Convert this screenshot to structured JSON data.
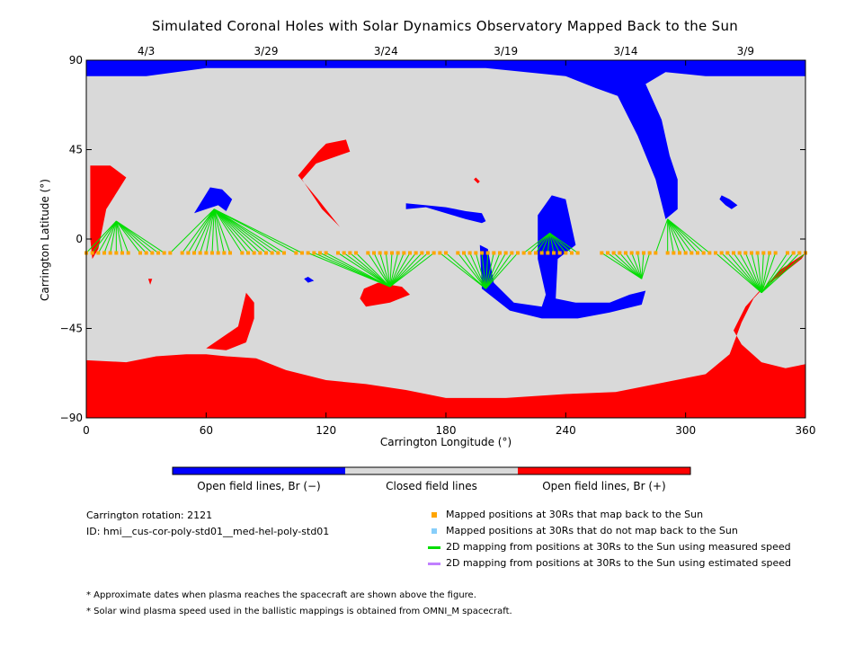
{
  "title": "Simulated Coronal Holes with Solar Dynamics Observatory Mapped Back to the Sun",
  "colors": {
    "open_negative": "#0000ff",
    "closed": "#d9d9d9",
    "open_positive": "#ff0000",
    "mapped_back": "#ffa500",
    "not_mapped": "#87cefa",
    "measured_speed": "#00dd00",
    "estimated_speed": "#c080ff"
  },
  "chart_data": {
    "type": "map",
    "xlabel": "Carrington Longitude (°)",
    "ylabel": "Carrington Latitude (°)",
    "xlim": [
      0,
      360
    ],
    "ylim": [
      -90,
      90
    ],
    "x_ticks": [
      "0",
      "60",
      "120",
      "180",
      "240",
      "300",
      "360"
    ],
    "y_ticks": [
      "90",
      "45",
      "0",
      "−45",
      "−90"
    ],
    "top_date_labels": [
      {
        "label": "4/3",
        "lon": 30
      },
      {
        "label": "3/29",
        "lon": 90
      },
      {
        "label": "3/24",
        "lon": 150
      },
      {
        "label": "3/19",
        "lon": 210
      },
      {
        "label": "3/14",
        "lon": 270
      },
      {
        "label": "3/9",
        "lon": 330
      }
    ],
    "mapped_latitude": -7,
    "mapped_longitudes": [
      0,
      3,
      6,
      9,
      12,
      15,
      18,
      21,
      27,
      30,
      33,
      36,
      39,
      42,
      48,
      51,
      54,
      57,
      60,
      63,
      66,
      69,
      72,
      78,
      81,
      84,
      87,
      90,
      93,
      96,
      99,
      105,
      108,
      111,
      114,
      117,
      120,
      126,
      129,
      132,
      135,
      141,
      144,
      147,
      150,
      153,
      156,
      159,
      162,
      165,
      168,
      171,
      174,
      177,
      180,
      186,
      189,
      192,
      195,
      198,
      201,
      204,
      207,
      210,
      213,
      216,
      219,
      222,
      225,
      228,
      231,
      234,
      237,
      240,
      243,
      246,
      258,
      261,
      264,
      267,
      270,
      273,
      276,
      279,
      282,
      285,
      291,
      294,
      297,
      300,
      303,
      306,
      309,
      312,
      315,
      318,
      321,
      324,
      327,
      330,
      333,
      336,
      339,
      342,
      345,
      351,
      354,
      357,
      360
    ],
    "footpoints": [
      {
        "lon": 15,
        "lat": 9
      },
      {
        "lon": 64,
        "lat": 15
      },
      {
        "lon": 152,
        "lat": -24
      },
      {
        "lon": 200,
        "lat": -25
      },
      {
        "lon": 232,
        "lat": 3
      },
      {
        "lon": 278,
        "lat": -20
      },
      {
        "lon": 291,
        "lat": 10
      },
      {
        "lon": 338,
        "lat": -27
      }
    ],
    "colorbar": [
      {
        "label": "Open field lines, Br (−)",
        "color": "#0000ff"
      },
      {
        "label": "Closed field lines",
        "color": "#d9d9d9"
      },
      {
        "label": "Open field lines, Br (+)",
        "color": "#ff0000"
      }
    ]
  },
  "info": {
    "rotation": "Carrington rotation: 2121",
    "id": "ID: hmi__cus-cor-poly-std01__med-hel-poly-std01"
  },
  "legend": [
    {
      "label": "Mapped positions at 30Rs that map back to the Sun",
      "kind": "square",
      "color": "#ffa500"
    },
    {
      "label": "Mapped positions at 30Rs that do not map back to the Sun",
      "kind": "square",
      "color": "#87cefa"
    },
    {
      "label": "2D mapping from positions at 30Rs to the Sun using measured speed",
      "kind": "line",
      "color": "#00dd00"
    },
    {
      "label": "2D mapping from positions at 30Rs to the Sun using estimated speed",
      "kind": "line",
      "color": "#c080ff"
    }
  ],
  "notes": [
    "* Approximate dates when plasma reaches the spacecraft are shown above the figure.",
    "* Solar wind plasma speed used in the ballistic mappings is obtained from OMNI_M spacecraft."
  ]
}
